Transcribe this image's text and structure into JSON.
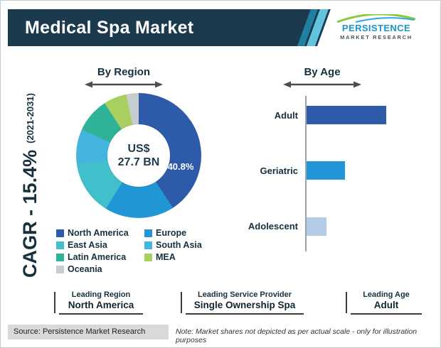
{
  "header": {
    "title": "Medical Spa Market"
  },
  "logo": {
    "name": "PERSISTENCE",
    "subtitle": "MARKET RESEARCH"
  },
  "cagr": {
    "main": "CAGR - 15.4%",
    "sub": "(2021-2031)"
  },
  "chart_data": [
    {
      "type": "pie",
      "title": "By Region",
      "center_label": {
        "line1": "US$",
        "line2": "27.7 BN"
      },
      "legend_position": "below",
      "series": [
        {
          "name": "North America",
          "value": 40.8,
          "label": "40.8%",
          "color": "#2d5ba9"
        },
        {
          "name": "Europe",
          "value": 18.0,
          "color": "#2196d4"
        },
        {
          "name": "East Asia",
          "value": 14.0,
          "color": "#41c0cc"
        },
        {
          "name": "South Asia",
          "value": 9.0,
          "color": "#45b5e0"
        },
        {
          "name": "Latin America",
          "value": 9.0,
          "color": "#2eb398"
        },
        {
          "name": "MEA",
          "value": 6.0,
          "color": "#a8cf60"
        },
        {
          "name": "Oceania",
          "value": 3.2,
          "color": "#c7ccd1"
        }
      ],
      "note": "Only the North America share (40.8%) is labeled; other slice values are estimated from arc angles"
    },
    {
      "type": "bar",
      "title": "By Age",
      "orientation": "horizontal",
      "categories": [
        "Adult",
        "Geriatric",
        "Adolescent"
      ],
      "values": [
        100,
        48,
        25
      ],
      "value_scale": "relative - no numeric axis shown in figure",
      "colors": [
        "#2d5ba9",
        "#2196d4",
        "#b3cbe6"
      ]
    }
  ],
  "stats": [
    {
      "label": "Leading Region",
      "value": "North America"
    },
    {
      "label": "Leading Service Provider",
      "value": "Single Ownership Spa"
    },
    {
      "label": "Leading Age",
      "value": "Adult"
    }
  ],
  "footer": {
    "source": "Source: Persistence Market Research",
    "note": "Note: Market shares not depicted as per actual scale - only for illustration purposes"
  },
  "theme": {
    "header_bg": "#1b3a4d",
    "accent_teal": "#2aa9e0",
    "logo_green": "#8dc63f",
    "text_dark": "#16303d"
  }
}
